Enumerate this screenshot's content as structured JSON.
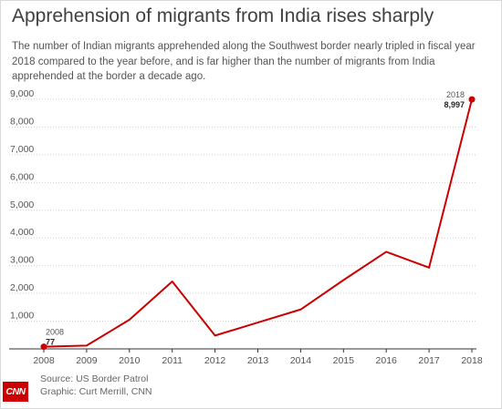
{
  "title": "Apprehension of migrants from India rises sharply",
  "subtitle": "The number of Indian migrants apprehended along the Southwest border nearly tripled in fiscal year 2018 compared to the year before, and is far higher than the number of migrants from India apprehended at the border a decade ago.",
  "source": "Source: US Border Patrol",
  "graphic_credit": "Graphic: Curt Merrill, CNN",
  "logo_text": "CNN",
  "colors": {
    "line": "#cc0000",
    "grid": "#d0d0d0",
    "axis": "#333333",
    "text": "#555555"
  },
  "chart_data": {
    "type": "line",
    "title": "Apprehension of migrants from India rises sharply",
    "xlabel": "",
    "ylabel": "",
    "x": [
      2008,
      2009,
      2010,
      2011,
      2012,
      2013,
      2014,
      2015,
      2016,
      2017,
      2018
    ],
    "x_tick_labels": [
      "2008",
      "2009",
      "2010",
      "2011",
      "2012",
      "2013",
      "2014",
      "2015",
      "2016",
      "2017",
      "2018"
    ],
    "series": [
      {
        "values": [
          77,
          120,
          1050,
          2430,
          480,
          950,
          1420,
          2480,
          3500,
          2930,
          8997
        ]
      }
    ],
    "ylim": [
      0,
      9000
    ],
    "y_ticks": [
      1000,
      2000,
      3000,
      4000,
      5000,
      6000,
      7000,
      8000,
      9000
    ],
    "y_tick_labels": [
      "1,000",
      "2,000",
      "3,000",
      "4,000",
      "5,000",
      "6,000",
      "7,000",
      "8,000",
      "9,000"
    ],
    "grid": true,
    "annotations": [
      {
        "year_label": "2008",
        "value_label": "77",
        "index": 0
      },
      {
        "year_label": "2018",
        "value_label": "8,997",
        "index": 10
      }
    ]
  }
}
